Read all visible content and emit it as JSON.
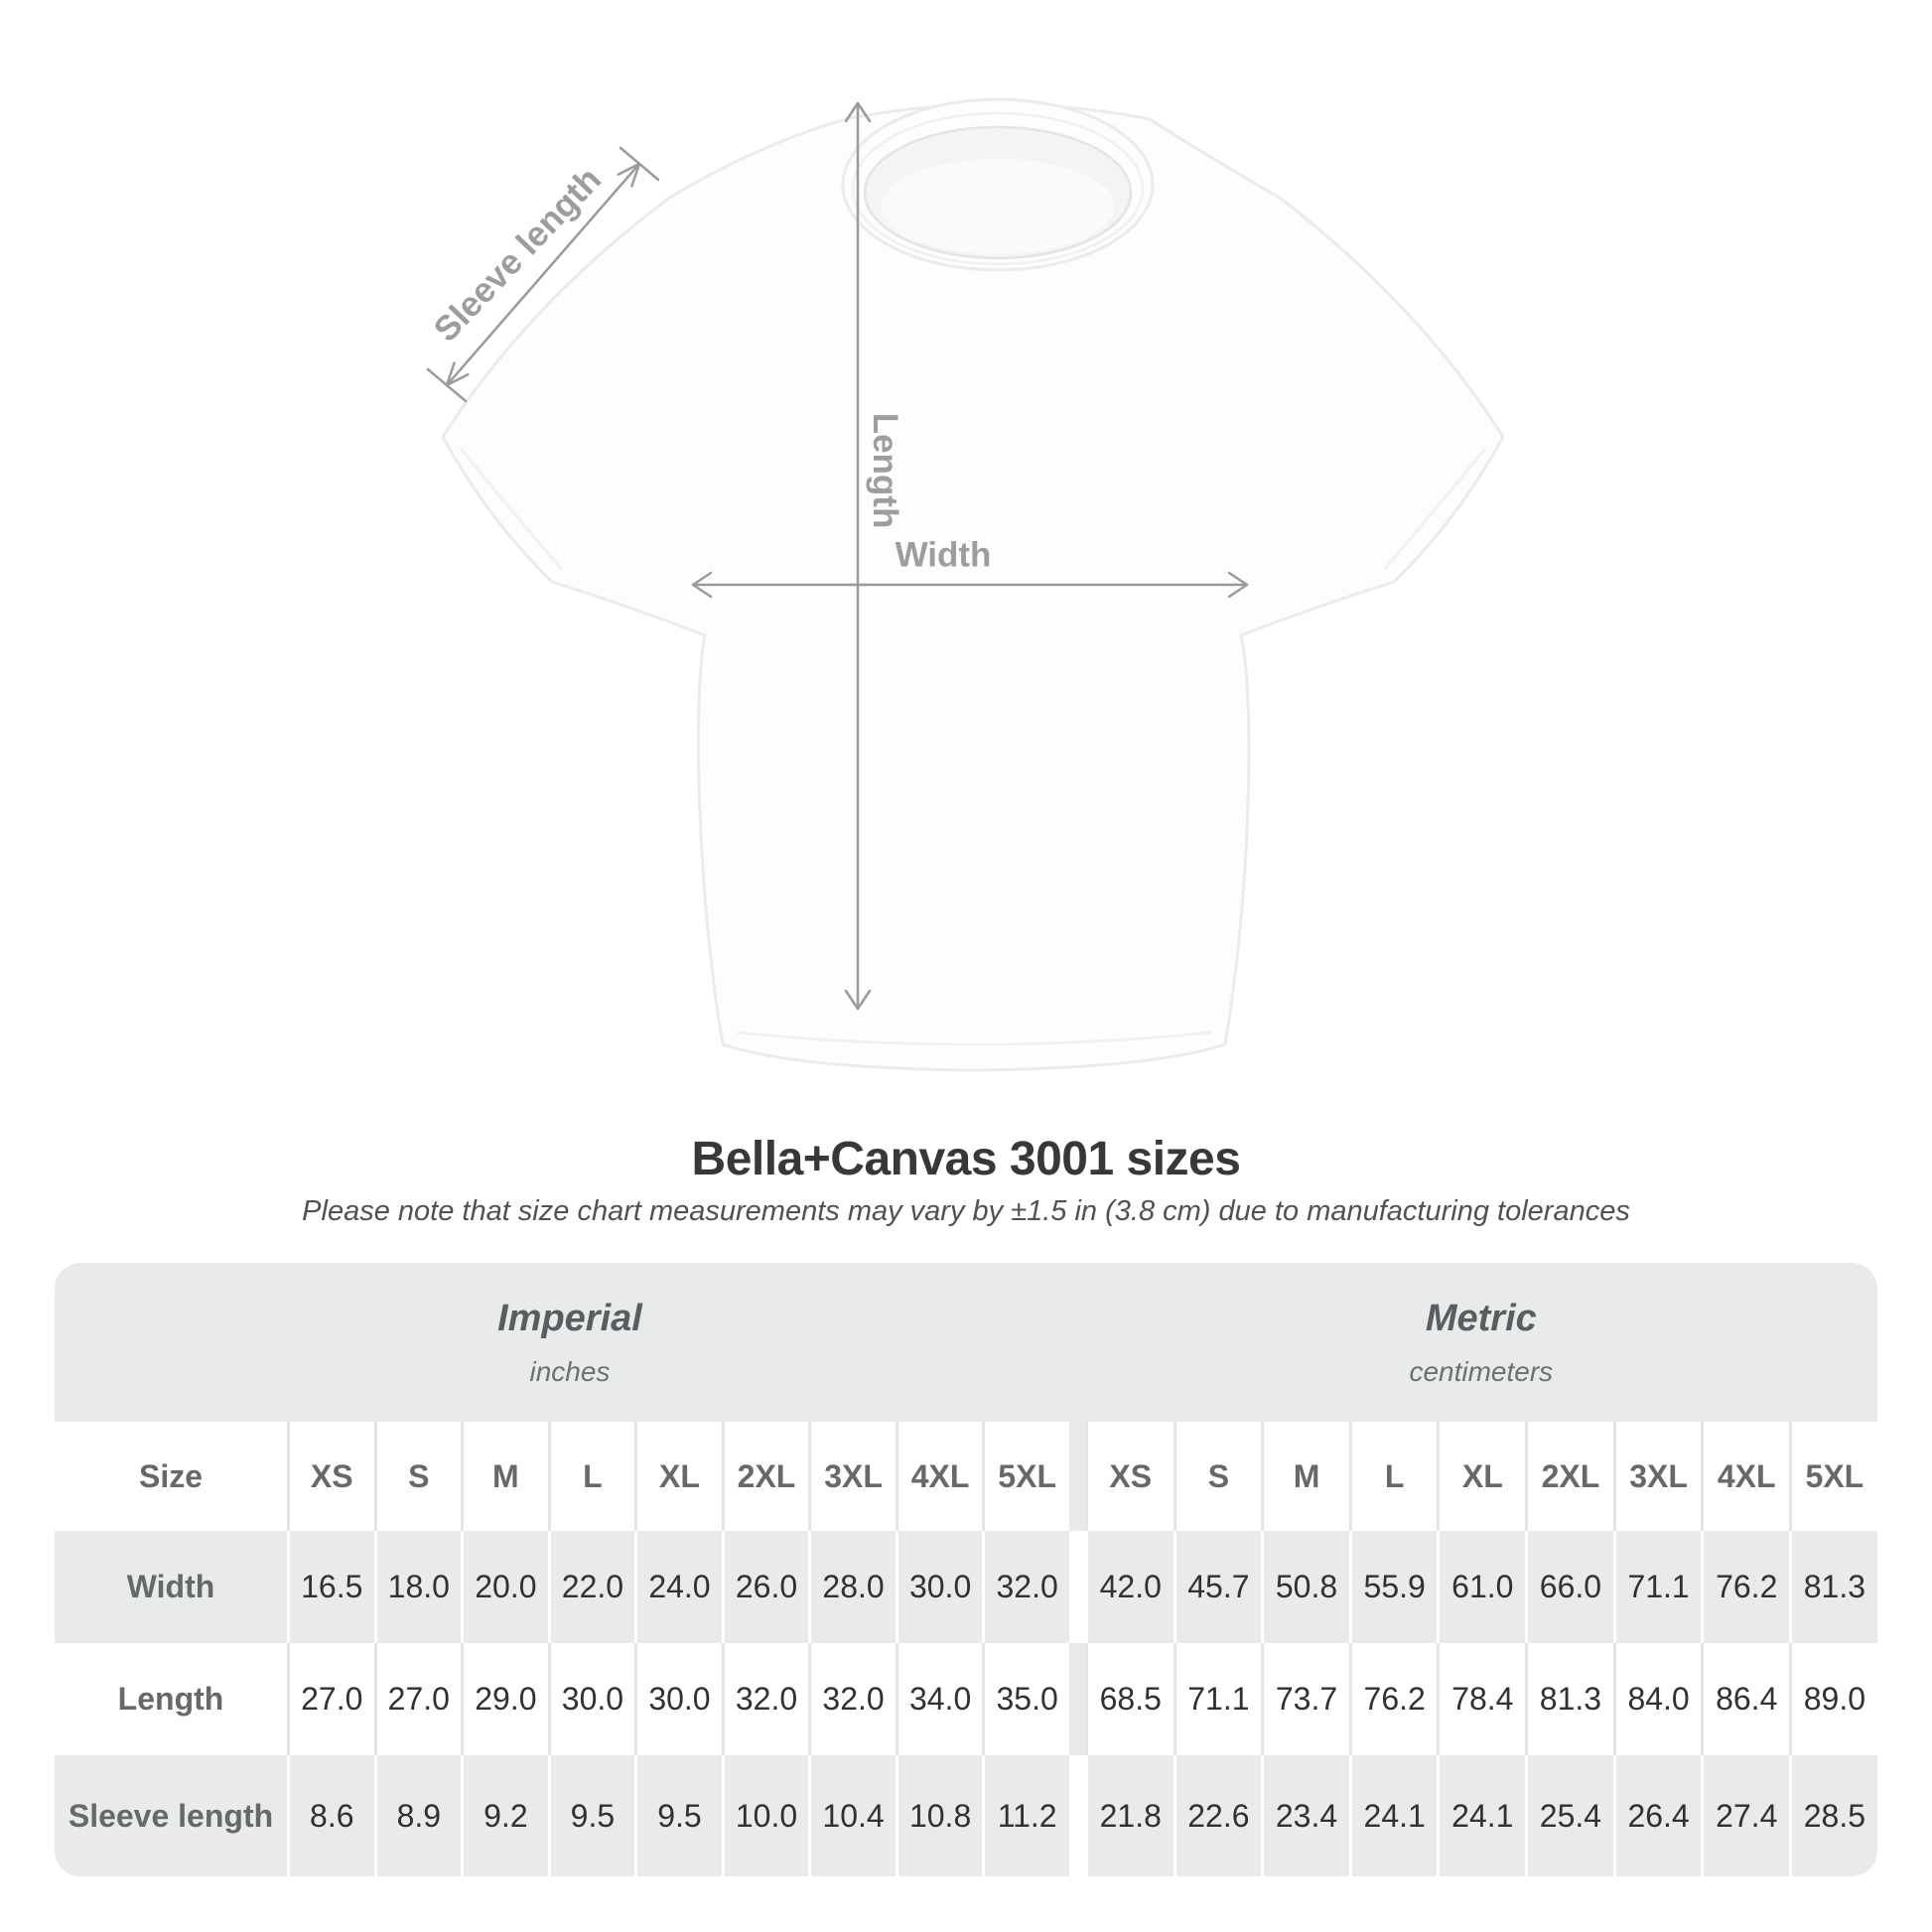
{
  "title": "Bella+Canvas 3001 sizes",
  "note": "Please note that size chart measurements may vary by ±1.5 in (3.8 cm) due to manufacturing tolerances",
  "diagram": {
    "labels": {
      "sleeve_length": "Sleeve length",
      "length": "Length",
      "width": "Width"
    }
  },
  "table": {
    "size_header": "Size",
    "sizes": [
      "XS",
      "S",
      "M",
      "L",
      "XL",
      "2XL",
      "3XL",
      "4XL",
      "5XL"
    ],
    "groups": [
      {
        "label": "Imperial",
        "sublabel": "inches"
      },
      {
        "label": "Metric",
        "sublabel": "centimeters"
      }
    ],
    "rows": [
      {
        "label": "Width",
        "imperial": [
          "16.5",
          "18.0",
          "20.0",
          "22.0",
          "24.0",
          "26.0",
          "28.0",
          "30.0",
          "32.0"
        ],
        "metric": [
          "42.0",
          "45.7",
          "50.8",
          "55.9",
          "61.0",
          "66.0",
          "71.1",
          "76.2",
          "81.3"
        ]
      },
      {
        "label": "Length",
        "imperial": [
          "27.0",
          "27.0",
          "29.0",
          "30.0",
          "30.0",
          "32.0",
          "32.0",
          "34.0",
          "35.0"
        ],
        "metric": [
          "68.5",
          "71.1",
          "73.7",
          "76.2",
          "78.4",
          "81.3",
          "84.0",
          "86.4",
          "89.0"
        ]
      },
      {
        "label": "Sleeve length",
        "imperial": [
          "8.6",
          "8.9",
          "9.2",
          "9.5",
          "9.5",
          "10.0",
          "10.4",
          "10.8",
          "11.2"
        ],
        "metric": [
          "21.8",
          "22.6",
          "23.4",
          "24.1",
          "24.1",
          "25.4",
          "26.4",
          "27.4",
          "28.5"
        ]
      }
    ]
  },
  "chart_data": {
    "type": "table",
    "title": "Bella+Canvas 3001 sizes",
    "subtitle": "Please note that size chart measurements may vary by ±1.5 in (3.8 cm) due to manufacturing tolerances",
    "column_groups": [
      "Imperial (inches)",
      "Metric (centimeters)"
    ],
    "categories": [
      "XS",
      "S",
      "M",
      "L",
      "XL",
      "2XL",
      "3XL",
      "4XL",
      "5XL"
    ],
    "series": [
      {
        "name": "Width (in)",
        "values": [
          16.5,
          18.0,
          20.0,
          22.0,
          24.0,
          26.0,
          28.0,
          30.0,
          32.0
        ]
      },
      {
        "name": "Length (in)",
        "values": [
          27.0,
          27.0,
          29.0,
          30.0,
          30.0,
          32.0,
          32.0,
          34.0,
          35.0
        ]
      },
      {
        "name": "Sleeve length (in)",
        "values": [
          8.6,
          8.9,
          9.2,
          9.5,
          9.5,
          10.0,
          10.4,
          10.8,
          11.2
        ]
      },
      {
        "name": "Width (cm)",
        "values": [
          42.0,
          45.7,
          50.8,
          55.9,
          61.0,
          66.0,
          71.1,
          76.2,
          81.3
        ]
      },
      {
        "name": "Length (cm)",
        "values": [
          68.5,
          71.1,
          73.7,
          76.2,
          78.4,
          81.3,
          84.0,
          86.4,
          89.0
        ]
      },
      {
        "name": "Sleeve length (cm)",
        "values": [
          21.8,
          22.6,
          23.4,
          24.1,
          24.1,
          25.4,
          26.4,
          27.4,
          28.5
        ]
      }
    ]
  },
  "colors": {
    "table_band_gray": "#e9eaea",
    "separator_on_white": "#e4e5e5",
    "arrow_gray": "#9b9b9b",
    "diagram_label_gray": "#9b9d9e",
    "title_text": "#383838",
    "value_text": "#2f3132",
    "header_text": "#66696b"
  }
}
